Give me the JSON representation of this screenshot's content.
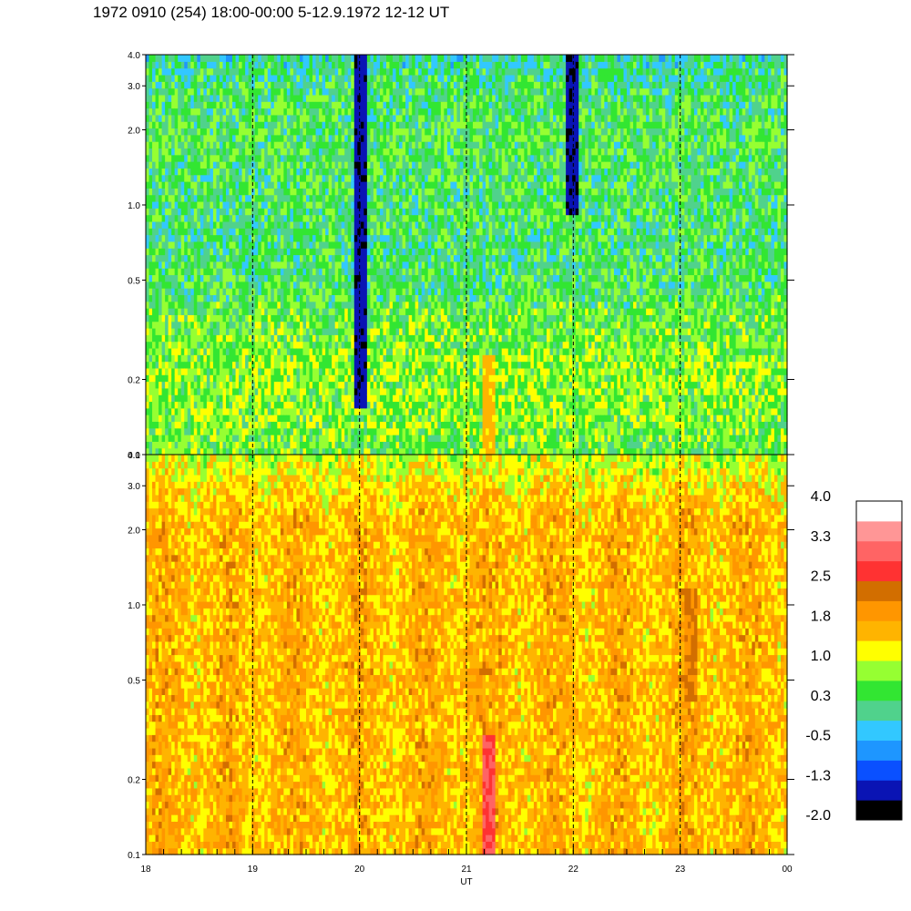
{
  "page": {
    "title": "1972 0910 (254) 18:00-00:00 5-12.9.1972  12-12 UT"
  },
  "chart_data": {
    "type": "heatmap",
    "title": "1972 0910 (254) 18:00-00:00 5-12.9.1972  12-12 UT",
    "xlabel": "UT",
    "x_ticks": [
      "18",
      "19",
      "20",
      "21",
      "22",
      "23",
      "00"
    ],
    "x_range_hours_ut": [
      18,
      24
    ],
    "y_scale": "log",
    "y_range": [
      0.1,
      4.0
    ],
    "y_ticks": [
      "0.1",
      "0.2",
      "0.5",
      "1.0",
      "2.0",
      "3.0",
      "4.0"
    ],
    "hour_markers": [
      "19",
      "20",
      "21",
      "22",
      "23"
    ],
    "panels": [
      {
        "id": "upper",
        "y_ticks": [
          "0.1",
          "0.2",
          "0.5",
          "1.0",
          "2.0",
          "3.0",
          "4.0"
        ],
        "dominant_level": 0.5,
        "features": [
          {
            "time_ut": 20.0,
            "level": -1.5,
            "y_from": 0.15,
            "y_to": 4.0
          },
          {
            "time_ut": 22.0,
            "level": -1.5,
            "y_from": 0.9,
            "y_to": 4.0
          },
          {
            "time_ut": 21.2,
            "level": 1.5,
            "y_from": 0.1,
            "y_to": 0.25
          }
        ]
      },
      {
        "id": "lower",
        "y_ticks": [
          "0.1",
          "0.2",
          "0.5",
          "1.0",
          "2.0",
          "3.0",
          "4.0"
        ],
        "dominant_level": 1.6,
        "features": [
          {
            "time_ut": 21.2,
            "level": 2.9,
            "y_from": 0.1,
            "y_to": 0.3
          },
          {
            "time_ut": 23.1,
            "level": 2.2,
            "y_from": 0.4,
            "y_to": 1.2
          }
        ]
      }
    ],
    "colorbar": {
      "tick_labels": [
        "4.0",
        "3.3",
        "2.5",
        "1.8",
        "1.0",
        "0.3",
        "-0.5",
        "-1.3",
        "-2.0"
      ],
      "colors": [
        "#000000",
        "#0a14b4",
        "#0a50ff",
        "#1e96ff",
        "#32c8ff",
        "#50d28c",
        "#32e632",
        "#96ff32",
        "#ffff00",
        "#ffb400",
        "#ff9600",
        "#d26e00",
        "#ff3232",
        "#ff6464",
        "#ff9696",
        "#ffffff"
      ],
      "range": [
        -2.0,
        4.0
      ]
    }
  }
}
